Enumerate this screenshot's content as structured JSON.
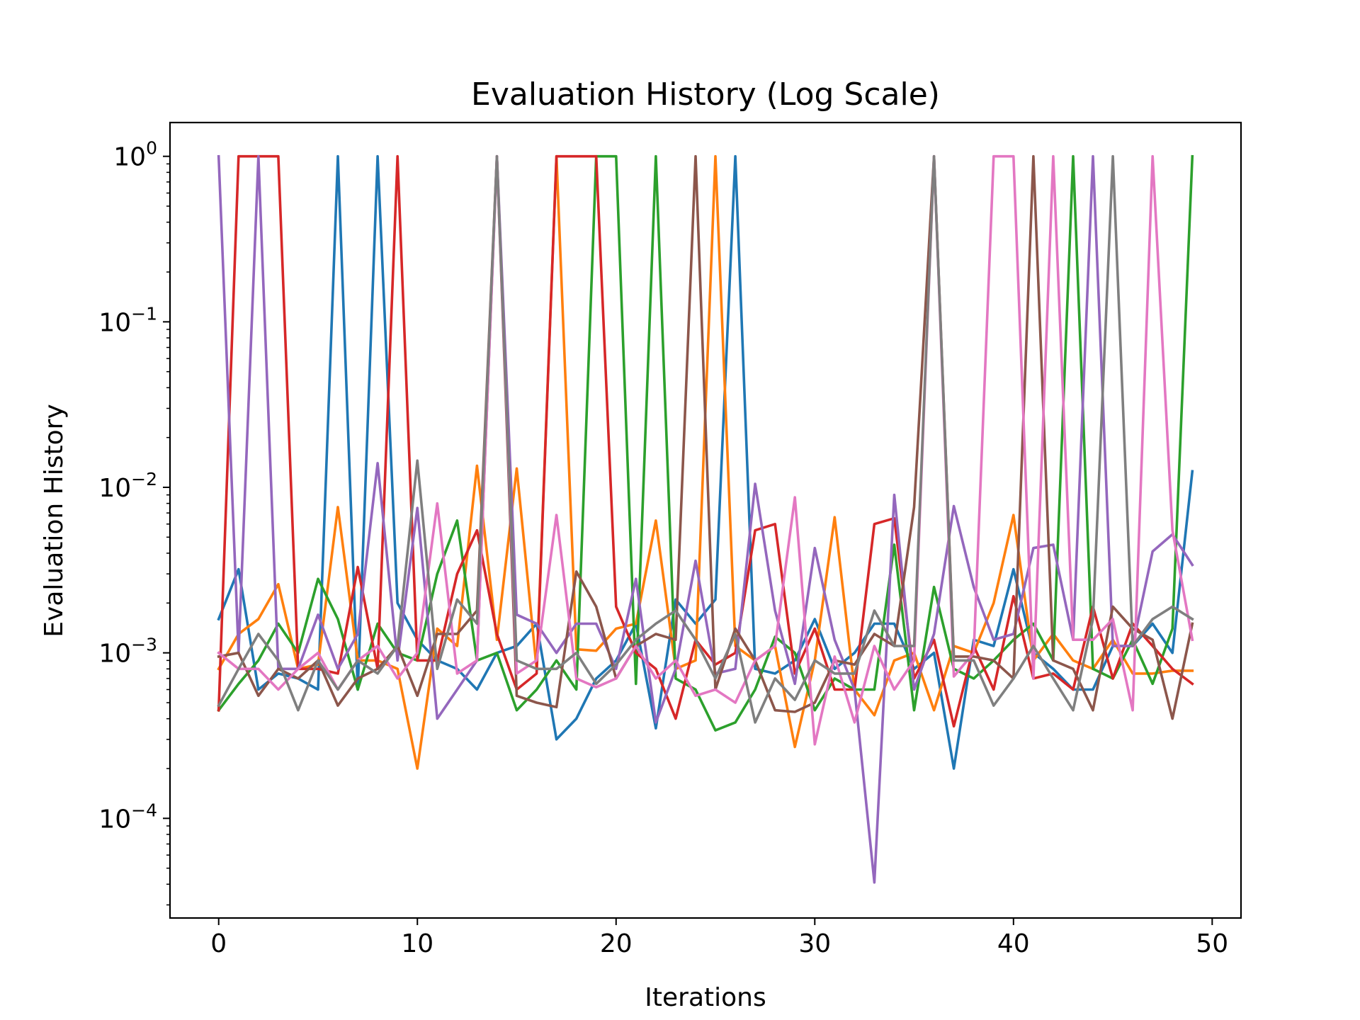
{
  "chart_data": {
    "type": "line",
    "title": "Evaluation History (Log Scale)",
    "xlabel": "Iterations",
    "ylabel": "Evaluation History",
    "yscale": "log",
    "xlim": [
      -2.45,
      51.45
    ],
    "ylim": [
      2.5e-05,
      1.6
    ],
    "grid": false,
    "legend": "none",
    "x_ticks": [
      0,
      10,
      20,
      30,
      40,
      50
    ],
    "y_ticks": [
      {
        "value": 1,
        "base": "10",
        "exp": "0"
      },
      {
        "value": 0.1,
        "base": "10",
        "exp": "−1"
      },
      {
        "value": 0.01,
        "base": "10",
        "exp": "−2"
      },
      {
        "value": 0.001,
        "base": "10",
        "exp": "−3"
      },
      {
        "value": 0.0001,
        "base": "10",
        "exp": "−4"
      }
    ],
    "x": [
      0,
      1,
      2,
      3,
      4,
      5,
      6,
      7,
      8,
      9,
      10,
      11,
      12,
      13,
      14,
      15,
      16,
      17,
      18,
      19,
      20,
      21,
      22,
      23,
      24,
      25,
      26,
      27,
      28,
      29,
      30,
      31,
      32,
      33,
      34,
      35,
      36,
      37,
      38,
      39,
      40,
      41,
      42,
      43,
      44,
      45,
      46,
      47,
      48,
      49
    ],
    "series": [
      {
        "color": "#1f77b4",
        "values": [
          0.0016,
          0.0032,
          0.0006,
          0.00075,
          0.0007,
          0.0006,
          1.0,
          0.0006,
          1.0,
          0.002,
          0.0012,
          0.0009,
          0.0008,
          0.0006,
          0.001,
          0.0011,
          0.0015,
          0.0003,
          0.0004,
          0.0007,
          0.0009,
          0.0015,
          0.00035,
          0.0021,
          0.0015,
          0.0021,
          1.0,
          0.0008,
          0.00075,
          0.0009,
          0.0016,
          0.0008,
          0.001,
          0.0015,
          0.0015,
          0.0008,
          0.001,
          0.0002,
          0.0012,
          0.0011,
          0.0032,
          0.001,
          0.0008,
          0.0006,
          0.0006,
          0.0011,
          0.0011,
          0.0015,
          0.001,
          0.0125
        ]
      },
      {
        "color": "#ff7f0e",
        "values": [
          0.0008,
          0.0013,
          0.0016,
          0.0026,
          0.0008,
          0.00085,
          0.0076,
          0.0009,
          0.0009,
          0.0008,
          0.0002,
          0.0014,
          0.0011,
          0.0135,
          0.0012,
          0.013,
          0.0008,
          1.0,
          0.00105,
          0.00103,
          0.0014,
          0.0015,
          0.0063,
          0.0008,
          0.0009,
          1.0,
          0.0011,
          0.0009,
          0.0011,
          0.00027,
          0.0009,
          0.0066,
          0.0006,
          0.00042,
          0.0009,
          0.001,
          0.00045,
          0.0011,
          0.001,
          0.002,
          0.0068,
          0.0009,
          0.0013,
          0.0009,
          0.0008,
          0.0012,
          0.00075,
          0.00075,
          0.00078,
          0.00078
        ]
      },
      {
        "color": "#2ca02c",
        "values": [
          0.00045,
          0.00065,
          0.0009,
          0.0015,
          0.001,
          0.0028,
          0.0016,
          0.0006,
          0.0015,
          0.001,
          0.0009,
          0.003,
          0.0063,
          0.0009,
          0.001,
          0.00045,
          0.0006,
          0.0009,
          0.0006,
          1.0,
          1.0,
          0.00065,
          1.0,
          0.0007,
          0.0006,
          0.00034,
          0.00038,
          0.0006,
          0.00125,
          0.001,
          0.00045,
          0.0007,
          0.0006,
          0.0006,
          0.0045,
          0.00045,
          0.0025,
          0.0008,
          0.0007,
          0.0009,
          0.0012,
          0.0015,
          0.0009,
          1.0,
          0.0008,
          0.0007,
          0.0012,
          0.00065,
          0.0014,
          1.0
        ]
      },
      {
        "color": "#d62728",
        "values": [
          0.00045,
          1.0,
          1.0,
          1.0,
          0.0008,
          0.0008,
          0.00075,
          0.0033,
          0.0008,
          1.0,
          0.0009,
          0.0009,
          0.003,
          0.0055,
          0.0013,
          0.0006,
          0.00075,
          1.0,
          1.0,
          1.0,
          0.0019,
          0.001,
          0.0008,
          0.0004,
          0.0012,
          0.00085,
          0.001,
          0.0055,
          0.006,
          0.00075,
          0.0014,
          0.0006,
          0.0006,
          0.006,
          0.0065,
          0.0007,
          0.0012,
          0.00036,
          0.0011,
          0.0006,
          0.0022,
          0.0007,
          0.00075,
          0.0006,
          0.0019,
          0.0007,
          0.0015,
          0.0011,
          0.0008,
          0.00065
        ]
      },
      {
        "color": "#9467bd",
        "values": [
          1.0,
          0.001,
          1.0,
          0.0008,
          0.0008,
          0.0017,
          0.0008,
          0.0013,
          0.014,
          0.0009,
          0.0075,
          0.0004,
          0.0006,
          0.0009,
          1.0,
          0.0017,
          0.0015,
          0.001,
          0.0015,
          0.0015,
          0.0008,
          0.0028,
          0.00038,
          0.0008,
          0.0036,
          0.00075,
          0.0008,
          0.0105,
          0.0018,
          0.00065,
          0.0043,
          0.0012,
          0.0006,
          4.1e-05,
          0.009,
          0.0006,
          0.0013,
          0.0077,
          0.0025,
          0.0012,
          0.0013,
          0.0043,
          0.0045,
          0.0012,
          1.0,
          0.0011,
          0.0011,
          0.0041,
          0.0052,
          0.0034
        ]
      },
      {
        "color": "#8c564b",
        "values": [
          0.00095,
          0.001,
          0.00055,
          0.0008,
          0.0007,
          0.0009,
          0.00048,
          0.0007,
          0.0008,
          0.0011,
          0.00055,
          0.0013,
          0.0013,
          0.0018,
          1.0,
          0.00055,
          0.0005,
          0.00047,
          0.0031,
          0.0019,
          0.0007,
          0.0011,
          0.0013,
          0.0012,
          1.0,
          0.0006,
          0.0014,
          0.0009,
          0.00045,
          0.00044,
          0.0005,
          0.0009,
          0.00085,
          0.0013,
          0.0011,
          0.0076,
          1.0,
          0.00095,
          0.00095,
          0.0009,
          0.0007,
          1.0,
          0.0009,
          0.0008,
          0.00045,
          0.0019,
          0.0014,
          0.0012,
          0.0004,
          0.0015
        ]
      },
      {
        "color": "#e377c2",
        "values": [
          0.001,
          0.0008,
          0.0008,
          0.0006,
          0.0008,
          0.001,
          0.0006,
          0.0009,
          0.0011,
          0.0007,
          0.001,
          0.008,
          0.00075,
          0.0009,
          1.0,
          0.00075,
          0.0009,
          0.0068,
          0.0007,
          0.00062,
          0.0007,
          0.0011,
          0.0007,
          0.0009,
          0.00055,
          0.0006,
          0.0005,
          0.0009,
          0.0011,
          0.0087,
          0.00028,
          0.00095,
          0.00038,
          0.0011,
          0.0006,
          0.0009,
          1.0,
          0.00072,
          0.001,
          1.0,
          1.0,
          0.0007,
          1.0,
          0.0012,
          0.0012,
          0.0016,
          0.00045,
          1.0,
          0.0055,
          0.0012
        ]
      },
      {
        "color": "#7f7f7f",
        "values": [
          0.00048,
          0.0008,
          0.0013,
          0.0009,
          0.00045,
          0.0009,
          0.0006,
          0.0009,
          0.00075,
          0.0011,
          0.0145,
          0.0008,
          0.0021,
          0.0015,
          1.0,
          0.0009,
          0.0008,
          0.0008,
          0.001,
          0.00065,
          0.00085,
          0.0012,
          0.0015,
          0.0018,
          0.0012,
          0.0007,
          0.0013,
          0.00038,
          0.0007,
          0.00052,
          0.0009,
          0.00075,
          0.00075,
          0.0018,
          0.0011,
          0.0011,
          1.0,
          0.0009,
          0.0009,
          0.00048,
          0.0007,
          0.0011,
          0.0007,
          0.00045,
          0.0016,
          1.0,
          0.0011,
          0.0016,
          0.0019,
          0.0016
        ]
      }
    ]
  }
}
